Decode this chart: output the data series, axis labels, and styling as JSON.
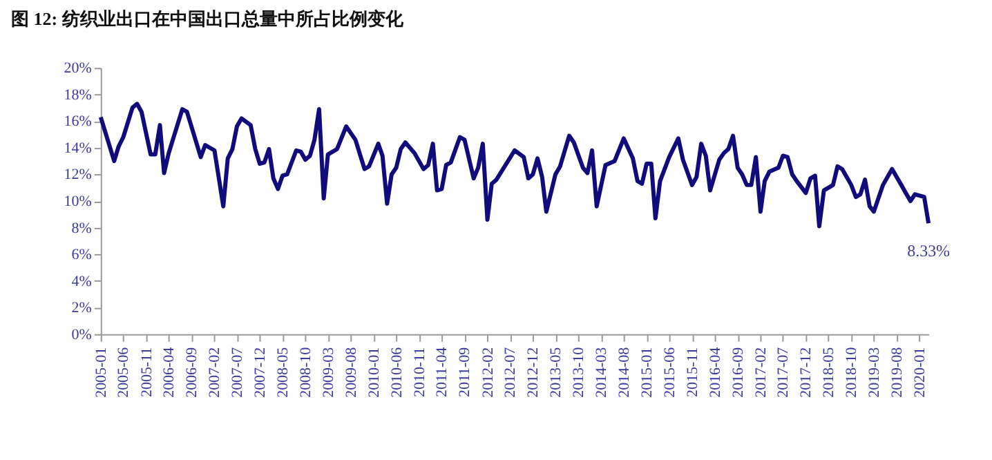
{
  "chart_data": {
    "type": "line",
    "title": "图 12: 纺织业出口在中国出口总量中所占比例变化",
    "x": [
      "2005-01",
      "2005-04",
      "2005-05",
      "2005-06",
      "2005-08",
      "2005-09",
      "2005-10",
      "2005-12",
      "2006-01",
      "2006-02",
      "2006-03",
      "2006-04",
      "2006-07",
      "2006-08",
      "2006-11",
      "2006-12",
      "2007-02",
      "2007-04",
      "2007-05",
      "2007-06",
      "2007-07",
      "2007-08",
      "2007-10",
      "2007-11",
      "2007-12",
      "2008-01",
      "2008-02",
      "2008-03",
      "2008-04",
      "2008-05",
      "2008-06",
      "2008-08",
      "2008-09",
      "2008-10",
      "2008-11",
      "2008-12",
      "2009-01",
      "2009-02",
      "2009-03",
      "2009-05",
      "2009-07",
      "2009-09",
      "2009-11",
      "2009-12",
      "2010-02",
      "2010-03",
      "2010-04",
      "2010-05",
      "2010-06",
      "2010-07",
      "2010-08",
      "2010-10",
      "2010-12",
      "2011-01",
      "2011-02",
      "2011-03",
      "2011-04",
      "2011-05",
      "2011-06",
      "2011-08",
      "2011-09",
      "2011-11",
      "2011-12",
      "2012-01",
      "2012-02",
      "2012-03",
      "2012-04",
      "2012-08",
      "2012-10",
      "2012-11",
      "2012-12",
      "2013-01",
      "2013-02",
      "2013-03",
      "2013-05",
      "2013-06",
      "2013-08",
      "2013-09",
      "2013-11",
      "2013-12",
      "2014-01",
      "2014-02",
      "2014-04",
      "2014-06",
      "2014-08",
      "2014-10",
      "2014-11",
      "2014-12",
      "2015-01",
      "2015-02",
      "2015-03",
      "2015-04",
      "2015-06",
      "2015-08",
      "2015-09",
      "2015-11",
      "2015-12",
      "2016-01",
      "2016-02",
      "2016-03",
      "2016-05",
      "2016-06",
      "2016-07",
      "2016-08",
      "2016-09",
      "2016-10",
      "2016-11",
      "2016-12",
      "2017-01",
      "2017-02",
      "2017-03",
      "2017-04",
      "2017-06",
      "2017-07",
      "2017-08",
      "2017-09",
      "2017-10",
      "2017-12",
      "2018-01",
      "2018-02",
      "2018-03",
      "2018-04",
      "2018-06",
      "2018-07",
      "2018-08",
      "2018-10",
      "2018-11",
      "2018-12",
      "2019-01",
      "2019-02",
      "2019-03",
      "2019-05",
      "2019-07",
      "2019-09",
      "2019-10",
      "2019-11",
      "2019-12",
      "2020-02",
      "2020-03"
    ],
    "series": [
      {
        "color": "#100c7c",
        "values": [
          16.3,
          13.0,
          14.1,
          14.8,
          17.0,
          17.3,
          16.7,
          13.5,
          13.5,
          15.7,
          12.1,
          13.6,
          16.9,
          16.7,
          13.3,
          14.2,
          13.8,
          9.6,
          13.2,
          13.9,
          15.6,
          16.2,
          15.7,
          13.9,
          12.8,
          12.9,
          13.9,
          11.7,
          10.9,
          11.9,
          12.0,
          13.8,
          13.7,
          13.1,
          13.4,
          14.6,
          16.9,
          10.2,
          13.5,
          13.9,
          15.6,
          14.6,
          12.4,
          12.6,
          14.3,
          13.4,
          9.8,
          12.0,
          12.5,
          13.9,
          14.4,
          13.6,
          12.4,
          12.7,
          14.3,
          10.8,
          10.9,
          12.7,
          12.9,
          14.8,
          14.6,
          11.7,
          12.5,
          14.3,
          8.6,
          11.3,
          11.6,
          13.8,
          13.3,
          11.7,
          12.0,
          13.2,
          11.8,
          9.2,
          12.0,
          12.6,
          14.9,
          14.4,
          12.5,
          12.1,
          13.8,
          9.6,
          12.7,
          13.0,
          14.7,
          13.2,
          11.5,
          11.3,
          12.8,
          12.8,
          8.7,
          11.5,
          13.3,
          14.7,
          13.1,
          11.2,
          11.8,
          14.3,
          13.4,
          10.8,
          13.1,
          13.6,
          13.9,
          14.9,
          12.5,
          12.0,
          11.2,
          11.2,
          13.3,
          9.2,
          11.5,
          12.2,
          12.5,
          13.4,
          13.3,
          12.0,
          11.5,
          10.6,
          11.7,
          11.9,
          8.1,
          10.8,
          11.2,
          12.6,
          12.4,
          11.2,
          10.3,
          10.5,
          11.6,
          9.6,
          9.2,
          11.2,
          12.4,
          11.2,
          10.6,
          10.0,
          10.5,
          10.3,
          8.33
        ]
      }
    ],
    "xlim": [
      "2005-01",
      "2020-03"
    ],
    "xticks": [
      "2005-01",
      "2005-06",
      "2005-11",
      "2006-04",
      "2006-09",
      "2007-02",
      "2007-07",
      "2007-12",
      "2008-05",
      "2008-10",
      "2009-03",
      "2009-08",
      "2010-01",
      "2010-06",
      "2010-11",
      "2011-04",
      "2011-09",
      "2012-02",
      "2012-07",
      "2012-12",
      "2013-05",
      "2013-10",
      "2014-03",
      "2014-08",
      "2015-01",
      "2015-06",
      "2015-11",
      "2016-04",
      "2016-09",
      "2017-02",
      "2017-07",
      "2017-12",
      "2018-05",
      "2018-10",
      "2019-03",
      "2019-08",
      "2020-01"
    ],
    "ylim": [
      0,
      20
    ],
    "yticks": [
      {
        "value": 0,
        "label": "0%"
      },
      {
        "value": 2,
        "label": "2%"
      },
      {
        "value": 4,
        "label": "4%"
      },
      {
        "value": 6,
        "label": "6%"
      },
      {
        "value": 8,
        "label": "8%"
      },
      {
        "value": 10,
        "label": "10%"
      },
      {
        "value": 12,
        "label": "12%"
      },
      {
        "value": 14,
        "label": "14%"
      },
      {
        "value": 16,
        "label": "16%"
      },
      {
        "value": 18,
        "label": "18%"
      },
      {
        "value": 20,
        "label": "20%"
      }
    ],
    "annotations": [
      {
        "text": "8.33%",
        "x": "2020-03",
        "y": 8.33
      }
    ],
    "grid": false,
    "marker": "none",
    "line_style": "solid"
  }
}
